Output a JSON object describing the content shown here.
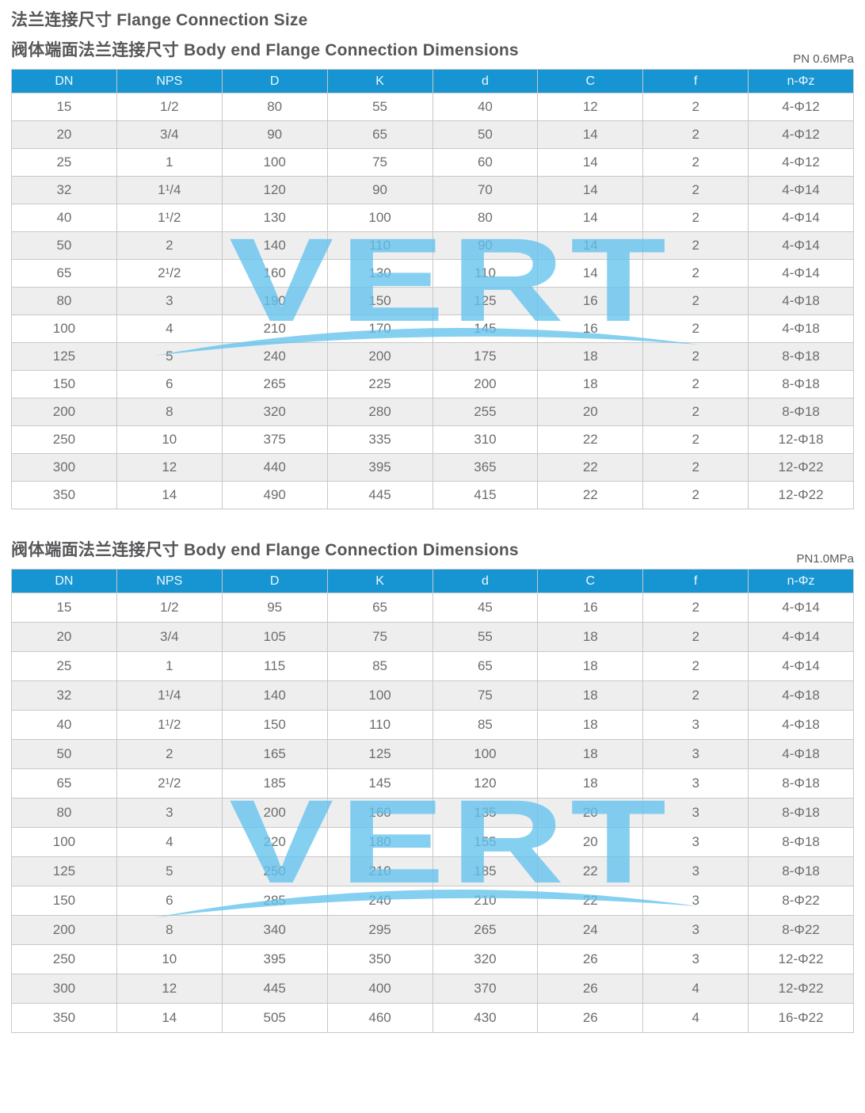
{
  "page": {
    "title": "法兰连接尺寸 Flange Connection Size"
  },
  "watermark": {
    "text": "VERT"
  },
  "colors": {
    "header_bg": "#1795d2",
    "header_text": "#eef7fc",
    "row_alt": "#eeeeee",
    "row_bg": "#ffffff",
    "border": "#c8c8c8",
    "cell_text": "#6d6d6d",
    "title_text": "#57575a",
    "watermark": "#63c3ee"
  },
  "sections": [
    {
      "subtitle": "阀体端面法兰连接尺寸 Body end Flange Connection Dimensions",
      "pressure_label": "PN 0.6MPa",
      "columns": [
        "DN",
        "NPS",
        "D",
        "K",
        "d",
        "C",
        "f",
        "n-Φz"
      ],
      "rows": [
        [
          "15",
          "1/2",
          "80",
          "55",
          "40",
          "12",
          "2",
          "4-Φ12"
        ],
        [
          "20",
          "3/4",
          "90",
          "65",
          "50",
          "14",
          "2",
          "4-Φ12"
        ],
        [
          "25",
          "1",
          "100",
          "75",
          "60",
          "14",
          "2",
          "4-Φ12"
        ],
        [
          "32",
          "1¹/4",
          "120",
          "90",
          "70",
          "14",
          "2",
          "4-Φ14"
        ],
        [
          "40",
          "1¹/2",
          "130",
          "100",
          "80",
          "14",
          "2",
          "4-Φ14"
        ],
        [
          "50",
          "2",
          "140",
          "110",
          "90",
          "14",
          "2",
          "4-Φ14"
        ],
        [
          "65",
          "2¹/2",
          "160",
          "130",
          "110",
          "14",
          "2",
          "4-Φ14"
        ],
        [
          "80",
          "3",
          "190",
          "150",
          "125",
          "16",
          "2",
          "4-Φ18"
        ],
        [
          "100",
          "4",
          "210",
          "170",
          "145",
          "16",
          "2",
          "4-Φ18"
        ],
        [
          "125",
          "5",
          "240",
          "200",
          "175",
          "18",
          "2",
          "8-Φ18"
        ],
        [
          "150",
          "6",
          "265",
          "225",
          "200",
          "18",
          "2",
          "8-Φ18"
        ],
        [
          "200",
          "8",
          "320",
          "280",
          "255",
          "20",
          "2",
          "8-Φ18"
        ],
        [
          "250",
          "10",
          "375",
          "335",
          "310",
          "22",
          "2",
          "12-Φ18"
        ],
        [
          "300",
          "12",
          "440",
          "395",
          "365",
          "22",
          "2",
          "12-Φ22"
        ],
        [
          "350",
          "14",
          "490",
          "445",
          "415",
          "22",
          "2",
          "12-Φ22"
        ]
      ]
    },
    {
      "subtitle": "阀体端面法兰连接尺寸 Body end Flange Connection Dimensions",
      "pressure_label": "PN1.0MPa",
      "columns": [
        "DN",
        "NPS",
        "D",
        "K",
        "d",
        "C",
        "f",
        "n-Φz"
      ],
      "rows": [
        [
          "15",
          "1/2",
          "95",
          "65",
          "45",
          "16",
          "2",
          "4-Φ14"
        ],
        [
          "20",
          "3/4",
          "105",
          "75",
          "55",
          "18",
          "2",
          "4-Φ14"
        ],
        [
          "25",
          "1",
          "115",
          "85",
          "65",
          "18",
          "2",
          "4-Φ14"
        ],
        [
          "32",
          "1¹/4",
          "140",
          "100",
          "75",
          "18",
          "2",
          "4-Φ18"
        ],
        [
          "40",
          "1¹/2",
          "150",
          "110",
          "85",
          "18",
          "3",
          "4-Φ18"
        ],
        [
          "50",
          "2",
          "165",
          "125",
          "100",
          "18",
          "3",
          "4-Φ18"
        ],
        [
          "65",
          "2¹/2",
          "185",
          "145",
          "120",
          "18",
          "3",
          "8-Φ18"
        ],
        [
          "80",
          "3",
          "200",
          "160",
          "135",
          "20",
          "3",
          "8-Φ18"
        ],
        [
          "100",
          "4",
          "220",
          "180",
          "155",
          "20",
          "3",
          "8-Φ18"
        ],
        [
          "125",
          "5",
          "250",
          "210",
          "185",
          "22",
          "3",
          "8-Φ18"
        ],
        [
          "150",
          "6",
          "285",
          "240",
          "210",
          "22",
          "3",
          "8-Φ22"
        ],
        [
          "200",
          "8",
          "340",
          "295",
          "265",
          "24",
          "3",
          "8-Φ22"
        ],
        [
          "250",
          "10",
          "395",
          "350",
          "320",
          "26",
          "3",
          "12-Φ22"
        ],
        [
          "300",
          "12",
          "445",
          "400",
          "370",
          "26",
          "4",
          "12-Φ22"
        ],
        [
          "350",
          "14",
          "505",
          "460",
          "430",
          "26",
          "4",
          "16-Φ22"
        ]
      ]
    }
  ]
}
